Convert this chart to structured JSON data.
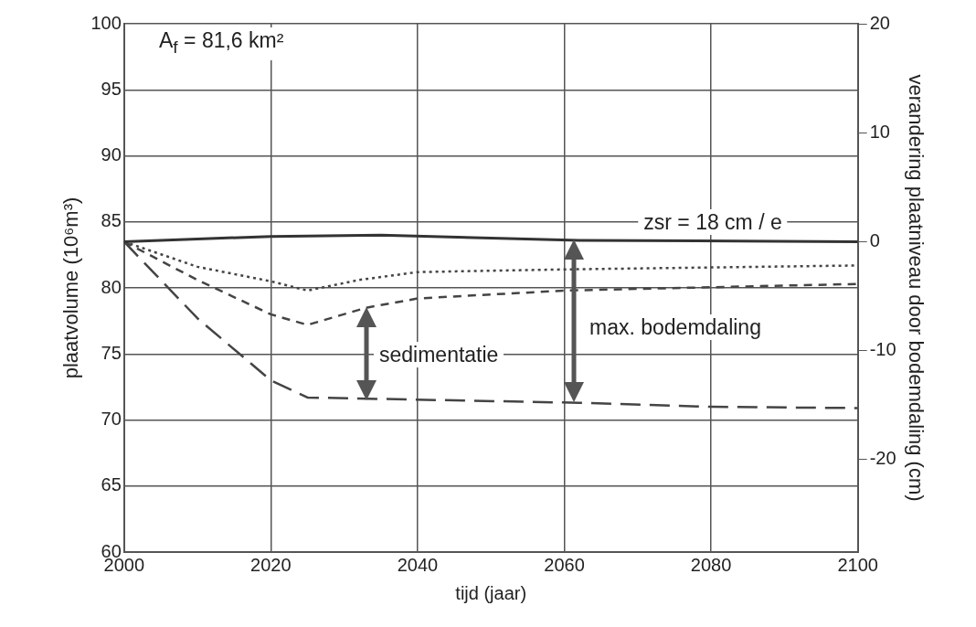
{
  "chart_data": {
    "type": "line",
    "xlabel": "tijd (jaar)",
    "ylabel": "plaatvolume (10⁶m³)",
    "y2label": "verandering plaatniveau door bodemdaling (cm)",
    "xlim": [
      2000,
      2100
    ],
    "xticks": [
      2000,
      2020,
      2040,
      2060,
      2080,
      2100
    ],
    "ylim": [
      60,
      100
    ],
    "yticks": [
      60,
      65,
      70,
      75,
      80,
      85,
      90,
      95,
      100
    ],
    "y2lim": [
      -28.5,
      20
    ],
    "y2ticks": [
      -20,
      -10,
      0,
      10,
      20
    ],
    "grid": true,
    "legend": false,
    "marker": "none",
    "series": [
      {
        "color": "#333333",
        "line_style": "solid",
        "x": [
          2000,
          2020,
          2035,
          2062,
          2100
        ],
        "values": [
          83.5,
          83.9,
          84.0,
          83.6,
          83.5
        ]
      },
      {
        "color": "#444444",
        "line_style": "dotted",
        "x": [
          2000,
          2010,
          2020,
          2025,
          2032,
          2040,
          2060,
          2100
        ],
        "values": [
          83.5,
          81.6,
          80.5,
          79.8,
          80.6,
          81.2,
          81.4,
          81.7
        ]
      },
      {
        "color": "#444444",
        "line_style": "dashed",
        "x": [
          2000,
          2010,
          2020,
          2025,
          2033,
          2040,
          2060,
          2100
        ],
        "values": [
          83.5,
          80.6,
          78.0,
          77.2,
          78.5,
          79.2,
          79.8,
          80.3
        ]
      },
      {
        "color": "#444444",
        "line_style": "longdash",
        "x": [
          2000,
          2010,
          2020,
          2025,
          2062,
          2080,
          2100
        ],
        "values": [
          83.5,
          77.7,
          73.0,
          71.7,
          71.3,
          71.0,
          70.9
        ]
      }
    ],
    "annotations": [
      "A$_{f}$ = 81,6 km²",
      "zsr = 18 cm / e",
      "sedimentatie",
      "max. bodemdaling"
    ]
  }
}
